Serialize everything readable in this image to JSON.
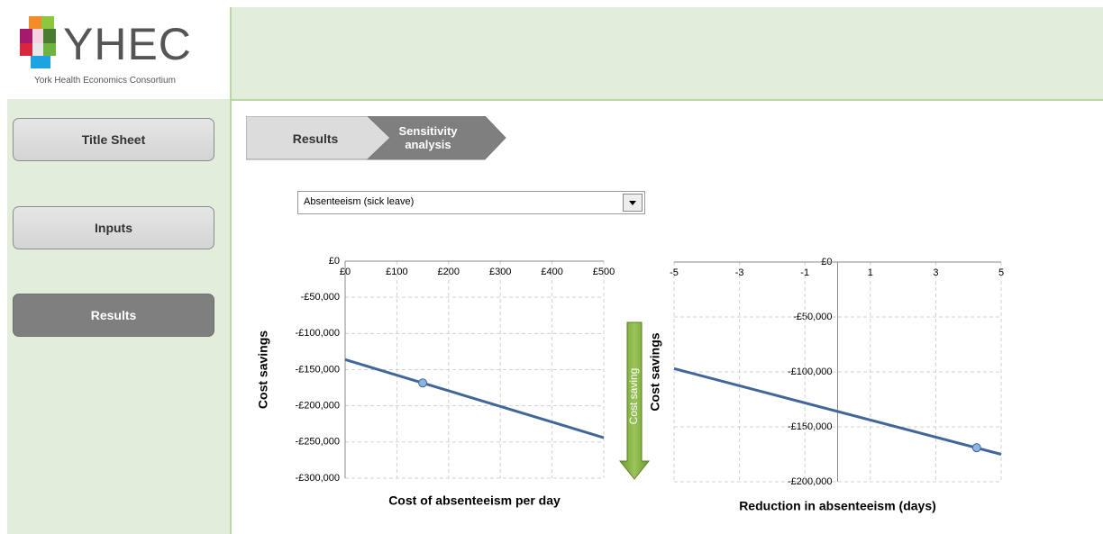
{
  "header": {
    "brand": "YHEC",
    "tagline": "York Health Economics Consortium"
  },
  "nav": [
    "Title Sheet",
    "Inputs",
    "Results"
  ],
  "breadcrumb": [
    "Results",
    "Sensitivity analysis"
  ],
  "dropdown": "Absenteeism (sick leave)",
  "annotation": "Cost saving",
  "chart_data": [
    {
      "type": "line",
      "x_label": "Cost of absenteeism per day",
      "y_label": "Cost savings",
      "xlim": [
        0,
        500
      ],
      "xticks": [
        {
          "value": 0,
          "label": "£0"
        },
        {
          "value": 100,
          "label": "£100"
        },
        {
          "value": 200,
          "label": "£200"
        },
        {
          "value": 300,
          "label": "£300"
        },
        {
          "value": 400,
          "label": "£400"
        },
        {
          "value": 500,
          "label": "£500"
        }
      ],
      "ylim": [
        -300000,
        0
      ],
      "yticks": [
        {
          "value": 0,
          "label": "£0"
        },
        {
          "value": -50000,
          "label": "-£50,000"
        },
        {
          "value": -100000,
          "label": "-£100,000"
        },
        {
          "value": -150000,
          "label": "-£150,000"
        },
        {
          "value": -200000,
          "label": "-£200,000"
        },
        {
          "value": -250000,
          "label": "-£250,000"
        },
        {
          "value": -300000,
          "label": "-£300,000"
        }
      ],
      "grid": true,
      "series": [
        {
          "color": "#41679a",
          "x": [
            0,
            500
          ],
          "values": [
            -136000,
            -244000
          ]
        },
        {
          "color": "#8db3e2",
          "marker": true,
          "x": [
            150
          ],
          "values": [
            -168400
          ]
        }
      ]
    },
    {
      "type": "line",
      "x_label": "Reduction in absenteeism (days)",
      "y_label": "Cost savings",
      "xlim": [
        -5,
        5
      ],
      "xticks": [
        -5,
        -3,
        -1,
        1,
        3,
        5
      ],
      "ylim": [
        -200000,
        0
      ],
      "yticks": [
        {
          "value": 0,
          "label": "£0"
        },
        {
          "value": -50000,
          "label": "-£50,000"
        },
        {
          "value": -100000,
          "label": "-£100,000"
        },
        {
          "value": -150000,
          "label": "-£150,000"
        },
        {
          "value": -200000,
          "label": "-£200,000"
        }
      ],
      "grid": true,
      "series": [
        {
          "color": "#41679a",
          "x": [
            -5,
            5
          ],
          "values": [
            -97000,
            -175000
          ]
        },
        {
          "color": "#8db3e2",
          "marker": true,
          "x": [
            4.25
          ],
          "values": [
            -169000
          ]
        }
      ]
    }
  ]
}
